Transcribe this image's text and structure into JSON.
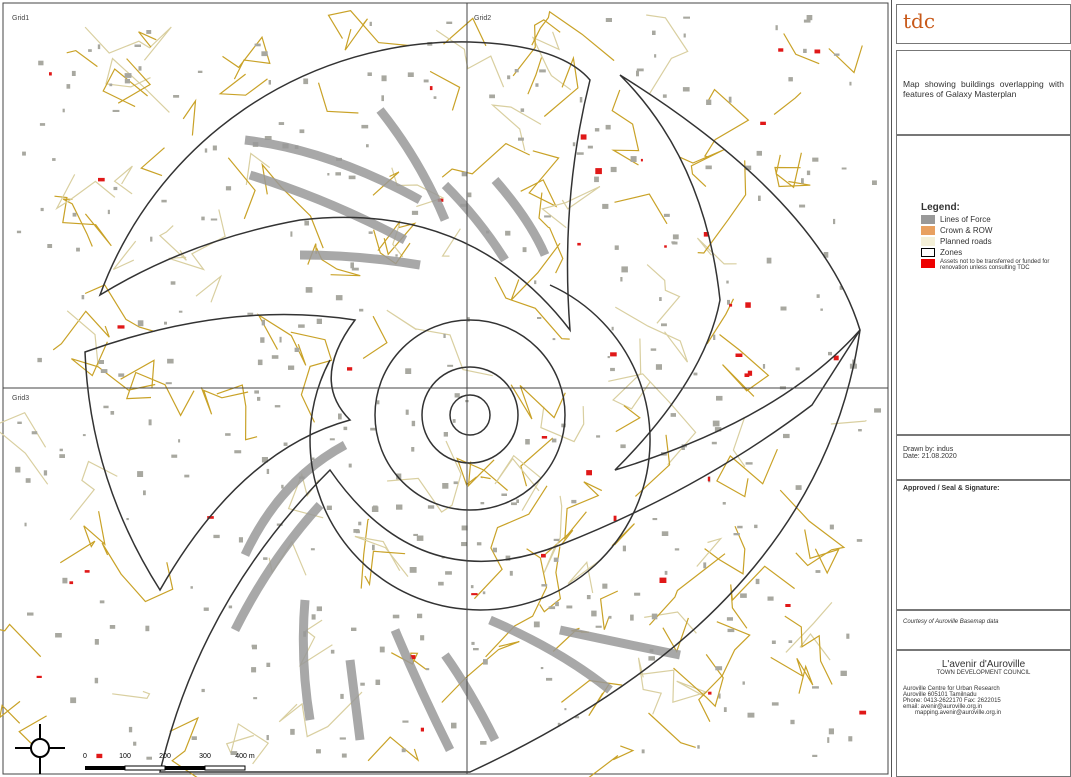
{
  "grid_labels": [
    "Grid1",
    "Grid2",
    "Grid3"
  ],
  "logo": "tdc",
  "title": "Map showing buildings overlapping with features of Galaxy Masterplan",
  "legend": {
    "heading": "Legend:",
    "items": [
      "Lines of Force",
      "Crown & ROW",
      "Planned roads",
      "Zones",
      "Assets not to be transferred or funded for renovation unless consulting TDC"
    ]
  },
  "drawn_by": "Drawn by: indus",
  "date": "Date: 21.08.2020",
  "approval": "Approved / Seal & Signature:",
  "credit": "Courtesy of Auroville Basemap data",
  "organization": {
    "name": "L'avenir d'Auroville",
    "subtitle": "TOWN DEVELOPMENT COUNCIL",
    "contact": [
      "Auroville Centre for Urban Research",
      "Auroville 605101 Tamilnadu",
      "Phone: 0413-2622170 Fax: 2622015",
      "email: avenir@auroville.org.in",
      "mapping.avenir@auroville.org.in"
    ]
  },
  "scale_bar": {
    "labels": [
      "0",
      "100",
      "200",
      "300",
      "400 m"
    ]
  }
}
